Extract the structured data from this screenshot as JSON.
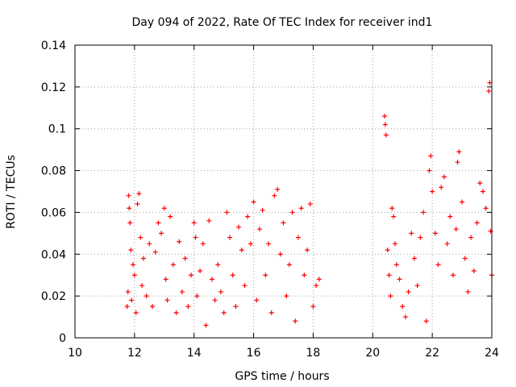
{
  "chart_data": {
    "type": "scatter",
    "title": "Day 094 of 2022, Rate Of TEC Index for receiver ind1",
    "xlabel": "GPS time / hours",
    "ylabel": "ROTI / TECUs",
    "xlim": [
      10,
      24
    ],
    "ylim": [
      0,
      0.14
    ],
    "x_ticks": [
      "10",
      "12",
      "14",
      "16",
      "18",
      "20",
      "22",
      "24"
    ],
    "y_ticks": [
      "0",
      "0.02",
      "0.04",
      "0.06",
      "0.08",
      "0.1",
      "0.12",
      "0.14"
    ],
    "grid": true,
    "marker": "plus",
    "series_color": "#ff0000",
    "series": [
      {
        "name": "ind1",
        "points": [
          [
            11.75,
            0.015
          ],
          [
            11.78,
            0.022
          ],
          [
            11.8,
            0.068
          ],
          [
            11.82,
            0.062
          ],
          [
            11.85,
            0.055
          ],
          [
            11.88,
            0.042
          ],
          [
            11.9,
            0.018
          ],
          [
            11.95,
            0.035
          ],
          [
            12.0,
            0.03
          ],
          [
            12.05,
            0.012
          ],
          [
            12.1,
            0.064
          ],
          [
            12.15,
            0.069
          ],
          [
            12.2,
            0.048
          ],
          [
            12.25,
            0.025
          ],
          [
            12.3,
            0.038
          ],
          [
            12.4,
            0.02
          ],
          [
            12.5,
            0.045
          ],
          [
            12.6,
            0.015
          ],
          [
            12.7,
            0.041
          ],
          [
            12.8,
            0.055
          ],
          [
            12.9,
            0.05
          ],
          [
            13.0,
            0.062
          ],
          [
            13.05,
            0.028
          ],
          [
            13.1,
            0.018
          ],
          [
            13.2,
            0.058
          ],
          [
            13.3,
            0.035
          ],
          [
            13.4,
            0.012
          ],
          [
            13.5,
            0.046
          ],
          [
            13.6,
            0.022
          ],
          [
            13.7,
            0.038
          ],
          [
            13.8,
            0.015
          ],
          [
            13.9,
            0.03
          ],
          [
            14.0,
            0.055
          ],
          [
            14.05,
            0.048
          ],
          [
            14.1,
            0.02
          ],
          [
            14.2,
            0.032
          ],
          [
            14.3,
            0.045
          ],
          [
            14.4,
            0.006
          ],
          [
            14.5,
            0.056
          ],
          [
            14.6,
            0.028
          ],
          [
            14.7,
            0.018
          ],
          [
            14.8,
            0.035
          ],
          [
            14.9,
            0.022
          ],
          [
            15.0,
            0.012
          ],
          [
            15.1,
            0.06
          ],
          [
            15.2,
            0.048
          ],
          [
            15.3,
            0.03
          ],
          [
            15.4,
            0.015
          ],
          [
            15.5,
            0.053
          ],
          [
            15.6,
            0.042
          ],
          [
            15.7,
            0.025
          ],
          [
            15.8,
            0.058
          ],
          [
            15.9,
            0.045
          ],
          [
            16.0,
            0.065
          ],
          [
            16.1,
            0.018
          ],
          [
            16.2,
            0.052
          ],
          [
            16.3,
            0.061
          ],
          [
            16.4,
            0.03
          ],
          [
            16.5,
            0.045
          ],
          [
            16.6,
            0.012
          ],
          [
            16.7,
            0.068
          ],
          [
            16.8,
            0.071
          ],
          [
            16.9,
            0.04
          ],
          [
            17.0,
            0.055
          ],
          [
            17.1,
            0.02
          ],
          [
            17.2,
            0.035
          ],
          [
            17.3,
            0.06
          ],
          [
            17.4,
            0.008
          ],
          [
            17.5,
            0.048
          ],
          [
            17.6,
            0.062
          ],
          [
            17.7,
            0.03
          ],
          [
            17.8,
            0.042
          ],
          [
            17.9,
            0.064
          ],
          [
            18.0,
            0.015
          ],
          [
            18.1,
            0.025
          ],
          [
            18.2,
            0.028
          ],
          [
            20.4,
            0.106
          ],
          [
            20.42,
            0.102
          ],
          [
            20.45,
            0.097
          ],
          [
            20.5,
            0.042
          ],
          [
            20.55,
            0.03
          ],
          [
            20.6,
            0.02
          ],
          [
            20.65,
            0.062
          ],
          [
            20.7,
            0.058
          ],
          [
            20.75,
            0.045
          ],
          [
            20.8,
            0.035
          ],
          [
            20.9,
            0.028
          ],
          [
            21.0,
            0.015
          ],
          [
            21.1,
            0.01
          ],
          [
            21.2,
            0.022
          ],
          [
            21.3,
            0.05
          ],
          [
            21.4,
            0.038
          ],
          [
            21.5,
            0.025
          ],
          [
            21.6,
            0.048
          ],
          [
            21.7,
            0.06
          ],
          [
            21.8,
            0.008
          ],
          [
            21.9,
            0.08
          ],
          [
            21.95,
            0.087
          ],
          [
            22.0,
            0.07
          ],
          [
            22.1,
            0.05
          ],
          [
            22.2,
            0.035
          ],
          [
            22.3,
            0.072
          ],
          [
            22.4,
            0.077
          ],
          [
            22.5,
            0.045
          ],
          [
            22.6,
            0.058
          ],
          [
            22.7,
            0.03
          ],
          [
            22.8,
            0.052
          ],
          [
            22.85,
            0.084
          ],
          [
            22.9,
            0.089
          ],
          [
            23.0,
            0.065
          ],
          [
            23.1,
            0.038
          ],
          [
            23.2,
            0.022
          ],
          [
            23.3,
            0.048
          ],
          [
            23.4,
            0.032
          ],
          [
            23.5,
            0.055
          ],
          [
            23.6,
            0.074
          ],
          [
            23.7,
            0.07
          ],
          [
            23.8,
            0.062
          ],
          [
            23.9,
            0.118
          ],
          [
            23.93,
            0.122
          ],
          [
            23.96,
            0.051
          ],
          [
            24.0,
            0.03
          ]
        ]
      }
    ]
  }
}
